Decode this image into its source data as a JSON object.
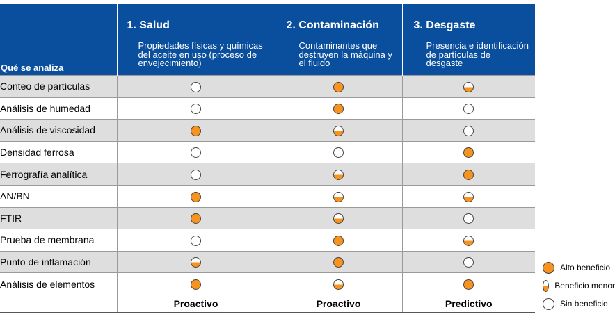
{
  "table": {
    "corner_label": "Qué se analiza",
    "columns": [
      {
        "title": "1. Salud",
        "description": "Propiedades físicas y químicas del aceite en uso (proceso de envejecimiento)"
      },
      {
        "title": "2. Contaminación",
        "description": "Contaminantes que destruyen la máquina y el fluido"
      },
      {
        "title": "3. Desgaste",
        "description": "Presencia e identificación de partículas de desgaste"
      }
    ],
    "rows": [
      {
        "name": "Conteo de partículas",
        "ratings": [
          "none",
          "full",
          "half"
        ]
      },
      {
        "name": "Análisis de humedad",
        "ratings": [
          "none",
          "full",
          "none"
        ]
      },
      {
        "name": "Análisis de viscosidad",
        "ratings": [
          "full",
          "half",
          "none"
        ]
      },
      {
        "name": "Densidad ferrosa",
        "ratings": [
          "none",
          "none",
          "full"
        ]
      },
      {
        "name": "Ferrografía analítica",
        "ratings": [
          "none",
          "half",
          "full"
        ]
      },
      {
        "name": "AN/BN",
        "ratings": [
          "full",
          "half",
          "half"
        ]
      },
      {
        "name": "FTIR",
        "ratings": [
          "full",
          "half",
          "none"
        ]
      },
      {
        "name": "Prueba de membrana",
        "ratings": [
          "none",
          "full",
          "half"
        ]
      },
      {
        "name": "Punto de inflamación",
        "ratings": [
          "half",
          "full",
          "none"
        ]
      },
      {
        "name": "Análisis de elementos",
        "ratings": [
          "full",
          "half",
          "full"
        ]
      }
    ],
    "footer": [
      "Proactivo",
      "Proactivo",
      "Predictivo"
    ]
  },
  "legend": [
    {
      "level": "full",
      "label": "Alto beneficio"
    },
    {
      "level": "half",
      "label": "Beneficio menor"
    },
    {
      "level": "none",
      "label": "Sin beneficio"
    }
  ],
  "colors": {
    "header_bg": "#0a4f9e",
    "high_benefit": "#f7931e",
    "row_shade": "#dedede"
  }
}
